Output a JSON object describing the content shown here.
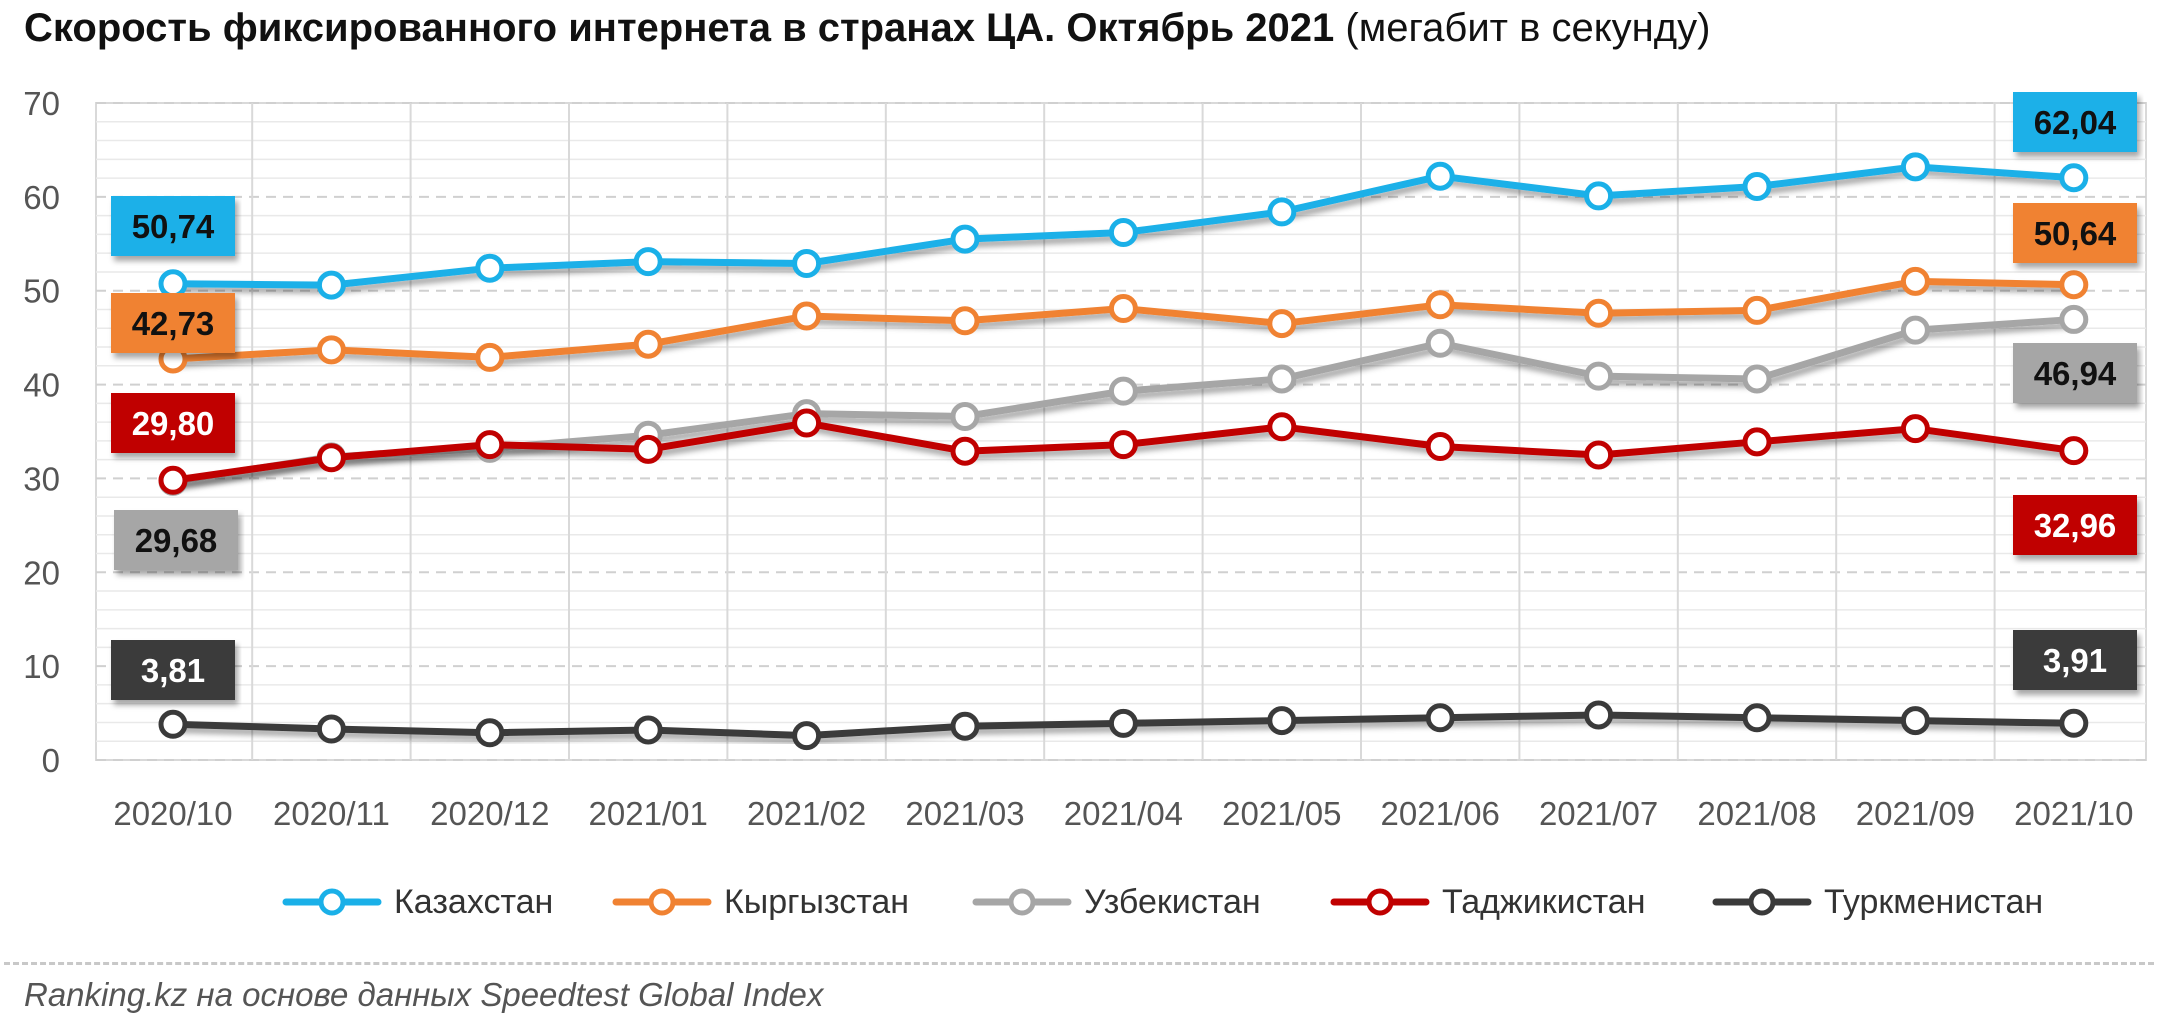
{
  "title": {
    "bold": "Скорость фиксированного интернета в странах ЦА. Октябрь 2021",
    "normal": "(мегабит в секунду)"
  },
  "source": "Ranking.kz на основе данных Speedtest Global Index",
  "chart_data": {
    "type": "line",
    "title": "Скорость фиксированного интернета в странах ЦА. Октябрь 2021 (мегабит в секунду)",
    "xlabel": "",
    "ylabel": "",
    "ylim": [
      0,
      70
    ],
    "yticks": [
      0,
      10,
      20,
      30,
      40,
      50,
      60,
      70
    ],
    "grid": true,
    "legend": "bottom",
    "categories": [
      "2020/10",
      "2020/11",
      "2020/12",
      "2021/01",
      "2021/02",
      "2021/03",
      "2021/04",
      "2021/05",
      "2021/06",
      "2021/07",
      "2021/08",
      "2021/09",
      "2021/10"
    ],
    "series": [
      {
        "name": "Казахстан",
        "color": "#1ab0e8",
        "values": [
          50.74,
          50.6,
          52.4,
          53.1,
          52.9,
          55.5,
          56.2,
          58.4,
          62.2,
          60.1,
          61.1,
          63.2,
          62.04
        ],
        "start_label": "50,74",
        "end_label": "62,04"
      },
      {
        "name": "Кыргызстан",
        "color": "#f08232",
        "values": [
          42.73,
          43.7,
          42.9,
          44.3,
          47.3,
          46.8,
          48.1,
          46.5,
          48.5,
          47.6,
          47.9,
          51.0,
          50.64
        ],
        "start_label": "42,73",
        "end_label": "50,64"
      },
      {
        "name": "Узбекистан",
        "color": "#a6a6a6",
        "values": [
          29.68,
          32.3,
          33.2,
          34.6,
          36.9,
          36.6,
          39.3,
          40.6,
          44.4,
          40.9,
          40.6,
          45.8,
          46.94
        ],
        "start_label": "29,68",
        "end_label": "46,94"
      },
      {
        "name": "Таджикистан",
        "color": "#c00000",
        "values": [
          29.8,
          32.2,
          33.6,
          33.1,
          35.9,
          32.9,
          33.6,
          35.5,
          33.4,
          32.5,
          33.9,
          35.3,
          32.96
        ],
        "start_label": "29,80",
        "end_label": "32,96"
      },
      {
        "name": "Туркменистан",
        "color": "#3a3a3a",
        "values": [
          3.81,
          3.3,
          2.9,
          3.2,
          2.6,
          3.6,
          3.9,
          4.2,
          4.5,
          4.8,
          4.5,
          4.2,
          3.91
        ],
        "start_label": "3,81",
        "end_label": "3,91"
      }
    ]
  }
}
